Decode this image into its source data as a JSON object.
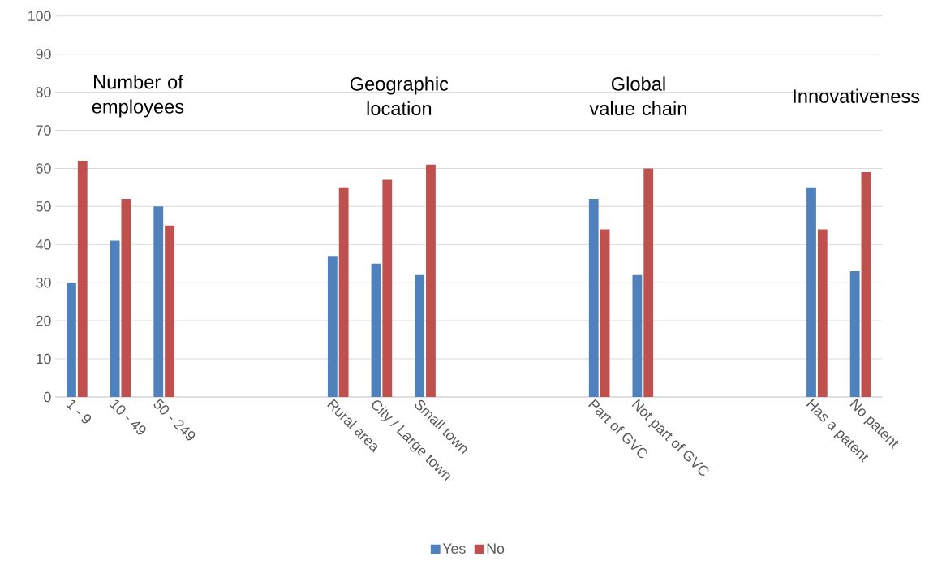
{
  "chart_data": {
    "type": "bar",
    "categories": [
      "1 - 9",
      "10 - 49",
      "50 - 249",
      null,
      null,
      null,
      "Rural area",
      "City / Large town",
      "Small town",
      null,
      null,
      null,
      "Part of GVC",
      "Not part of GVC",
      null,
      null,
      null,
      "Has a patent",
      "No patent"
    ],
    "series": [
      {
        "name": "Yes",
        "color": "#4f81bd",
        "values": [
          30,
          41,
          50,
          null,
          null,
          null,
          37,
          35,
          32,
          null,
          null,
          null,
          52,
          32,
          null,
          null,
          null,
          55,
          33
        ]
      },
      {
        "name": "No",
        "color": "#c0504d",
        "values": [
          62,
          52,
          45,
          null,
          null,
          null,
          55,
          57,
          61,
          null,
          null,
          null,
          44,
          60,
          null,
          null,
          null,
          44,
          59
        ]
      }
    ],
    "annotations": [
      "Number of employees",
      "Geographic location",
      "Global value chain",
      "Innovativeness"
    ],
    "ylim": [
      0,
      100
    ],
    "yticks": [
      0,
      10,
      20,
      30,
      40,
      50,
      60,
      70,
      80,
      90,
      100
    ],
    "grid": "y",
    "legend": "bottom"
  }
}
